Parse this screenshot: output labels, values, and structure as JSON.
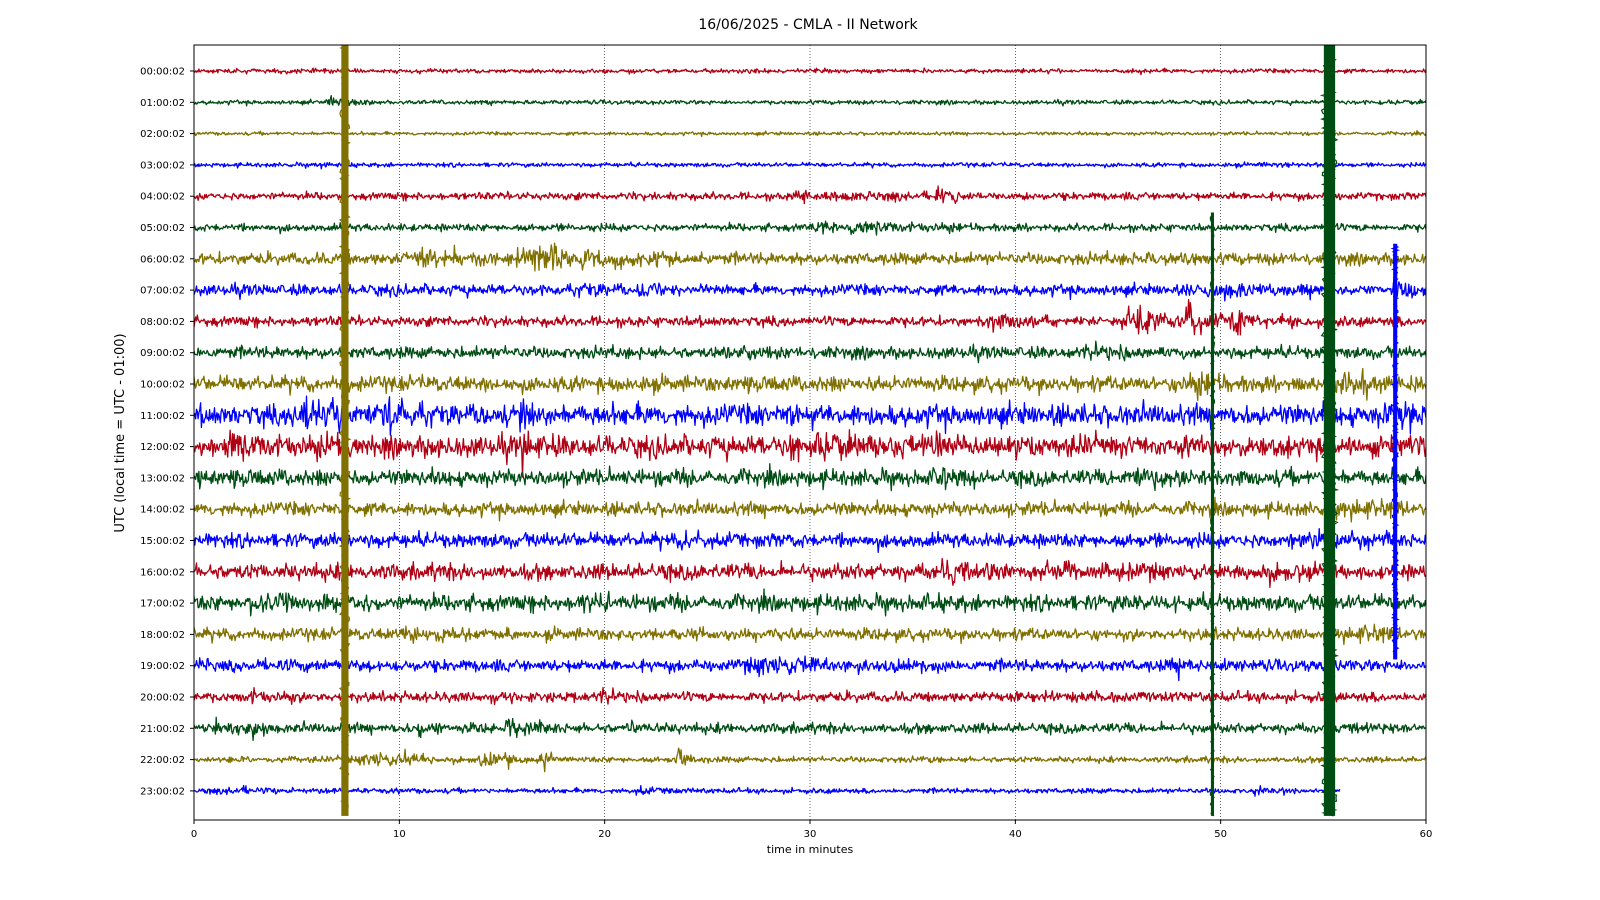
{
  "chart_data": {
    "type": "line",
    "title": "16/06/2025 - CMLA - II Network",
    "xlabel": "time in minutes",
    "ylabel": "UTC (local time = UTC - 01:00)",
    "xlim": [
      0,
      60
    ],
    "x_ticks": [
      "0",
      "10",
      "20",
      "30",
      "40",
      "50",
      "60"
    ],
    "grid": "vertical dotted at each 10 minutes",
    "legend": "none",
    "colors": [
      "#b00014",
      "#004d14",
      "#807000",
      "#0000ff"
    ],
    "traces": [
      {
        "label": "00:00:02",
        "color": "#b00014",
        "base": 0.5,
        "events": [
          {
            "t": 4,
            "amp": 0.2,
            "dur": 0.8
          }
        ]
      },
      {
        "label": "01:00:02",
        "color": "#004d14",
        "base": 0.5,
        "events": [
          {
            "t": 6.7,
            "amp": 1.5,
            "dur": 0.8
          },
          {
            "t": 8.3,
            "amp": 0.6,
            "dur": 0.6
          },
          {
            "t": 58,
            "amp": 0.3,
            "dur": 1
          }
        ]
      },
      {
        "label": "02:00:02",
        "color": "#807000",
        "base": 0.4,
        "events": []
      },
      {
        "label": "03:00:02",
        "color": "#0000ff",
        "base": 0.5,
        "events": [
          {
            "t": 6.2,
            "amp": 0.4,
            "dur": 0.5
          },
          {
            "t": 52,
            "amp": 0.4,
            "dur": 1
          }
        ]
      },
      {
        "label": "04:00:02",
        "color": "#b00014",
        "base": 0.9,
        "events": [
          {
            "t": 29.5,
            "amp": 1.6,
            "dur": 0.6
          },
          {
            "t": 32,
            "amp": 0.6,
            "dur": 3
          },
          {
            "t": 36.3,
            "amp": 1.8,
            "dur": 0.7
          }
        ]
      },
      {
        "label": "05:00:02",
        "color": "#004d14",
        "base": 0.9,
        "events": [
          {
            "t": 30.5,
            "amp": 1.2,
            "dur": 1
          },
          {
            "t": 32.5,
            "amp": 1.1,
            "dur": 3
          }
        ]
      },
      {
        "label": "06:00:02",
        "color": "#807000",
        "base": 1.4,
        "events": [
          {
            "t": 11.5,
            "amp": 1.5,
            "dur": 3
          },
          {
            "t": 16.5,
            "amp": 1.4,
            "dur": 3
          },
          {
            "t": 17.5,
            "amp": 2.2,
            "dur": 1
          },
          {
            "t": 19.5,
            "amp": 1,
            "dur": 2
          },
          {
            "t": 46,
            "amp": 0.7,
            "dur": 1
          }
        ]
      },
      {
        "label": "07:00:02",
        "color": "#0000ff",
        "base": 1.3,
        "events": [
          {
            "t": 19,
            "amp": 0.8,
            "dur": 2
          },
          {
            "t": 22,
            "amp": 0.9,
            "dur": 1.5
          },
          {
            "t": 50,
            "amp": 1.2,
            "dur": 3
          },
          {
            "t": 58.5,
            "amp": 1.5,
            "dur": 1
          }
        ]
      },
      {
        "label": "08:00:02",
        "color": "#b00014",
        "base": 1.2,
        "events": [
          {
            "t": 39,
            "amp": 1.3,
            "dur": 2
          },
          {
            "t": 46,
            "amp": 2.2,
            "dur": 3
          },
          {
            "t": 48.5,
            "amp": 2.8,
            "dur": 1
          },
          {
            "t": 50.8,
            "amp": 2.5,
            "dur": 0.8
          },
          {
            "t": 53,
            "amp": 1.1,
            "dur": 1
          }
        ]
      },
      {
        "label": "09:00:02",
        "color": "#004d14",
        "base": 1.4,
        "events": [
          {
            "t": 26,
            "amp": 0.8,
            "dur": 1
          },
          {
            "t": 44,
            "amp": 0.8,
            "dur": 2
          }
        ]
      },
      {
        "label": "10:00:02",
        "color": "#807000",
        "base": 1.8,
        "events": [
          {
            "t": 27,
            "amp": 0.9,
            "dur": 2
          },
          {
            "t": 49,
            "amp": 1.4,
            "dur": 2
          },
          {
            "t": 56,
            "amp": 1.3,
            "dur": 2
          }
        ]
      },
      {
        "label": "11:00:02",
        "color": "#0000ff",
        "base": 2.5,
        "events": [
          {
            "t": 5.5,
            "amp": 3,
            "dur": 1.5
          },
          {
            "t": 9.5,
            "amp": 3.2,
            "dur": 1.5
          },
          {
            "t": 16,
            "amp": 2.3,
            "dur": 0.5
          },
          {
            "t": 29,
            "amp": 1.8,
            "dur": 0.5
          },
          {
            "t": 58.5,
            "amp": 2.2,
            "dur": 1
          }
        ]
      },
      {
        "label": "12:00:02",
        "color": "#b00014",
        "base": 2.5,
        "events": [
          {
            "t": 2,
            "amp": 1.6,
            "dur": 1.5
          },
          {
            "t": 6.8,
            "amp": 2.2,
            "dur": 0.8
          },
          {
            "t": 16,
            "amp": 2.6,
            "dur": 0.5
          },
          {
            "t": 29.2,
            "amp": 3,
            "dur": 0.4
          },
          {
            "t": 30.5,
            "amp": 2,
            "dur": 2
          },
          {
            "t": 36,
            "amp": 1.3,
            "dur": 2
          }
        ]
      },
      {
        "label": "13:00:02",
        "color": "#004d14",
        "base": 1.9,
        "events": [
          {
            "t": 2,
            "amp": 1,
            "dur": 2
          },
          {
            "t": 36.5,
            "amp": 1.3,
            "dur": 0.8
          },
          {
            "t": 46,
            "amp": 1,
            "dur": 2
          }
        ]
      },
      {
        "label": "14:00:02",
        "color": "#807000",
        "base": 1.6,
        "events": [
          {
            "t": 57,
            "amp": 1,
            "dur": 2
          }
        ]
      },
      {
        "label": "15:00:02",
        "color": "#0000ff",
        "base": 1.7,
        "events": [
          {
            "t": 24,
            "amp": 0.9,
            "dur": 1
          },
          {
            "t": 54,
            "amp": 1,
            "dur": 2
          }
        ]
      },
      {
        "label": "16:00:02",
        "color": "#b00014",
        "base": 1.9,
        "events": [
          {
            "t": 37,
            "amp": 1.5,
            "dur": 2
          },
          {
            "t": 43,
            "amp": 1.3,
            "dur": 2
          },
          {
            "t": 52,
            "amp": 1.2,
            "dur": 2
          }
        ]
      },
      {
        "label": "17:00:02",
        "color": "#004d14",
        "base": 1.9,
        "events": [
          {
            "t": 3.5,
            "amp": 1,
            "dur": 2
          },
          {
            "t": 19,
            "amp": 1.4,
            "dur": 0.8
          },
          {
            "t": 45.5,
            "amp": 1.2,
            "dur": 1
          }
        ]
      },
      {
        "label": "18:00:02",
        "color": "#807000",
        "base": 1.4,
        "events": [
          {
            "t": 11,
            "amp": 0.9,
            "dur": 2
          },
          {
            "t": 57,
            "amp": 1,
            "dur": 2
          }
        ]
      },
      {
        "label": "19:00:02",
        "color": "#0000ff",
        "base": 1.4,
        "events": [
          {
            "t": 28,
            "amp": 1.6,
            "dur": 3
          },
          {
            "t": 48,
            "amp": 1.1,
            "dur": 1
          }
        ]
      },
      {
        "label": "20:00:02",
        "color": "#b00014",
        "base": 1.2,
        "events": [
          {
            "t": 2.8,
            "amp": 1.1,
            "dur": 0.7
          },
          {
            "t": 20,
            "amp": 0.9,
            "dur": 1
          }
        ]
      },
      {
        "label": "21:00:02",
        "color": "#004d14",
        "base": 1.2,
        "events": [
          {
            "t": 1,
            "amp": 1.3,
            "dur": 1
          },
          {
            "t": 2.8,
            "amp": 2.2,
            "dur": 0.6
          },
          {
            "t": 11,
            "amp": 2,
            "dur": 0.6
          },
          {
            "t": 15.3,
            "amp": 2.5,
            "dur": 0.6
          },
          {
            "t": 16.8,
            "amp": 1.6,
            "dur": 0.6
          },
          {
            "t": 21.2,
            "amp": 1.2,
            "dur": 0.5
          }
        ]
      },
      {
        "label": "22:00:02",
        "color": "#807000",
        "base": 0.7,
        "events": [
          {
            "t": 8.8,
            "amp": 1.6,
            "dur": 2.5
          },
          {
            "t": 10.3,
            "amp": 1.5,
            "dur": 0.5
          },
          {
            "t": 14.2,
            "amp": 1.6,
            "dur": 1
          },
          {
            "t": 15.2,
            "amp": 1.8,
            "dur": 0.6
          },
          {
            "t": 17,
            "amp": 1.7,
            "dur": 0.6
          },
          {
            "t": 23.7,
            "amp": 2,
            "dur": 0.6
          },
          {
            "t": 35.5,
            "amp": 0.6,
            "dur": 0.5
          }
        ]
      },
      {
        "label": "23:00:02",
        "color": "#0000ff",
        "base": 0.6,
        "events": [
          {
            "t": 2,
            "amp": 0.6,
            "dur": 2
          },
          {
            "t": 21.8,
            "amp": 0.7,
            "dur": 1
          },
          {
            "t": 51.8,
            "amp": 0.6,
            "dur": 1
          }
        ],
        "end": 55.8
      }
    ],
    "teleseisms": [
      {
        "t": 7.35,
        "row": 0,
        "color": "#807000",
        "width_min": 0.35,
        "until_row": 23
      },
      {
        "t": 55.3,
        "row": 0,
        "color": "#004d14",
        "width_min": 0.55,
        "until_row": 23
      },
      {
        "t": 49.6,
        "row": 5,
        "color": "#004d14",
        "width_min": 0.15,
        "until_row": 23
      },
      {
        "t": 58.5,
        "row": 6,
        "color": "#0000ff",
        "width_min": 0.2,
        "until_row": 18
      }
    ]
  }
}
